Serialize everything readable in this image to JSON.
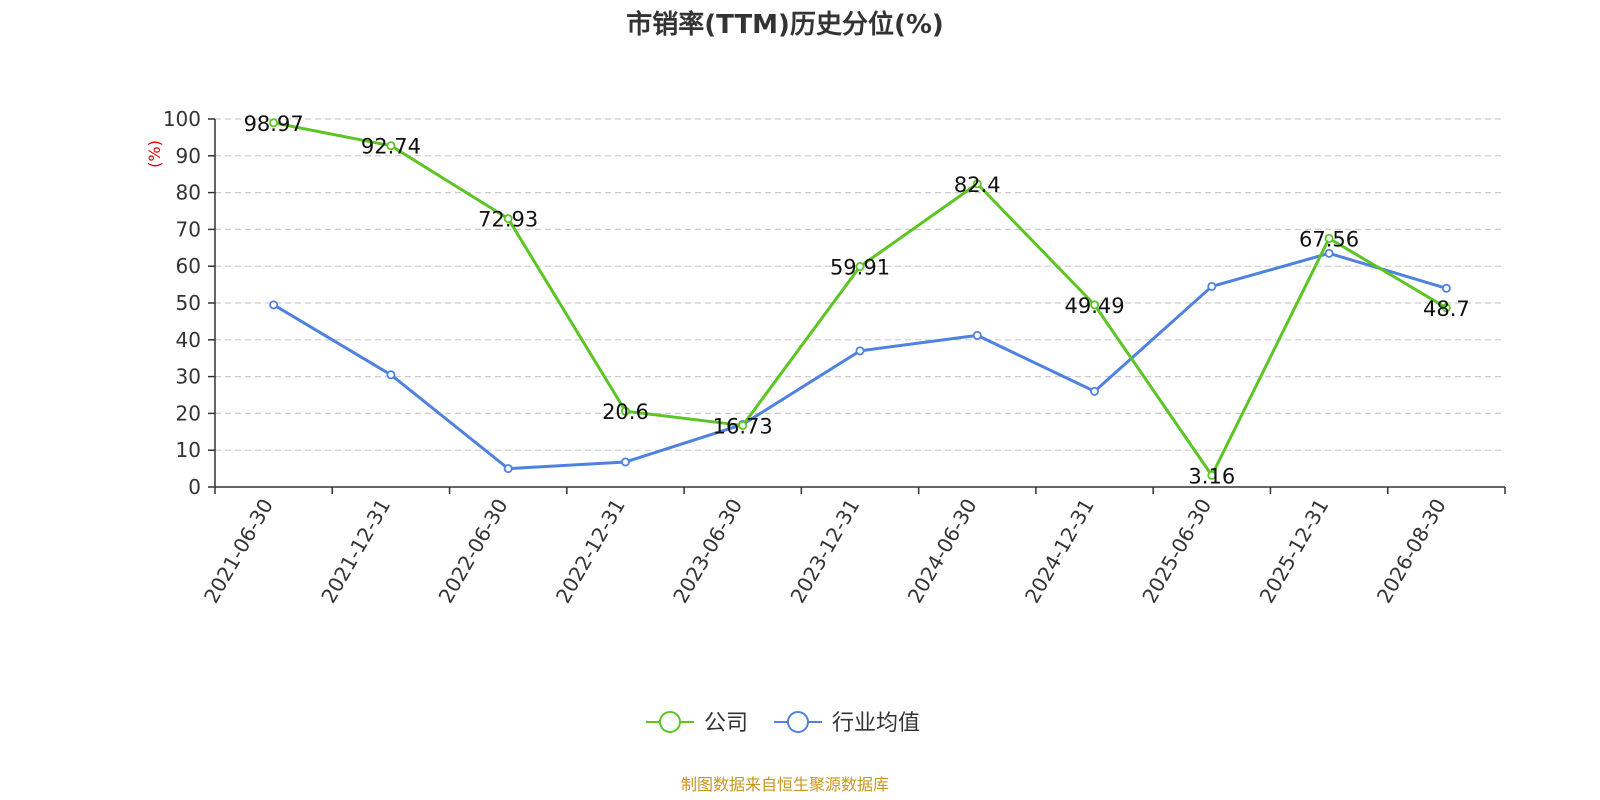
{
  "colors": {
    "company": "#5cc524",
    "industry": "#4f81e0",
    "axis": "#333333",
    "grid": "#cccccc",
    "ylabel": "#e00000",
    "source": "#c8961e"
  },
  "chart_data": {
    "type": "line",
    "title": "市销率(TTM)历史分位(%)",
    "ylabel": "(%)",
    "xlabel": "",
    "ylim": [
      0,
      100
    ],
    "yticks": [
      0,
      10,
      20,
      30,
      40,
      50,
      60,
      70,
      80,
      90,
      100
    ],
    "grid": true,
    "legend_position": "bottom-center",
    "categories": [
      "2021-06-30",
      "2021-12-31",
      "2022-06-30",
      "2022-12-31",
      "2023-06-30",
      "2023-12-31",
      "2024-06-30",
      "2024-12-31",
      "2025-06-30",
      "2025-12-31",
      "2026-08-30"
    ],
    "series": [
      {
        "name": "公司",
        "values": [
          98.97,
          92.74,
          72.93,
          20.6,
          16.73,
          59.91,
          82.4,
          49.49,
          3.16,
          67.56,
          48.7
        ],
        "labels": [
          "98.97",
          "92.74",
          "72.93",
          "20.6",
          "16.73",
          "59.91",
          "82.4",
          "49.49",
          "3.16",
          "67.56",
          "48.7"
        ],
        "color": "#5cc524"
      },
      {
        "name": "行业均值",
        "values": [
          49.5,
          30.5,
          5.0,
          6.8,
          17.0,
          37.0,
          41.2,
          26.0,
          54.5,
          63.5,
          54.0
        ],
        "color": "#4f81e0"
      }
    ]
  },
  "footer": {
    "source": "制图数据来自恒生聚源数据库"
  }
}
